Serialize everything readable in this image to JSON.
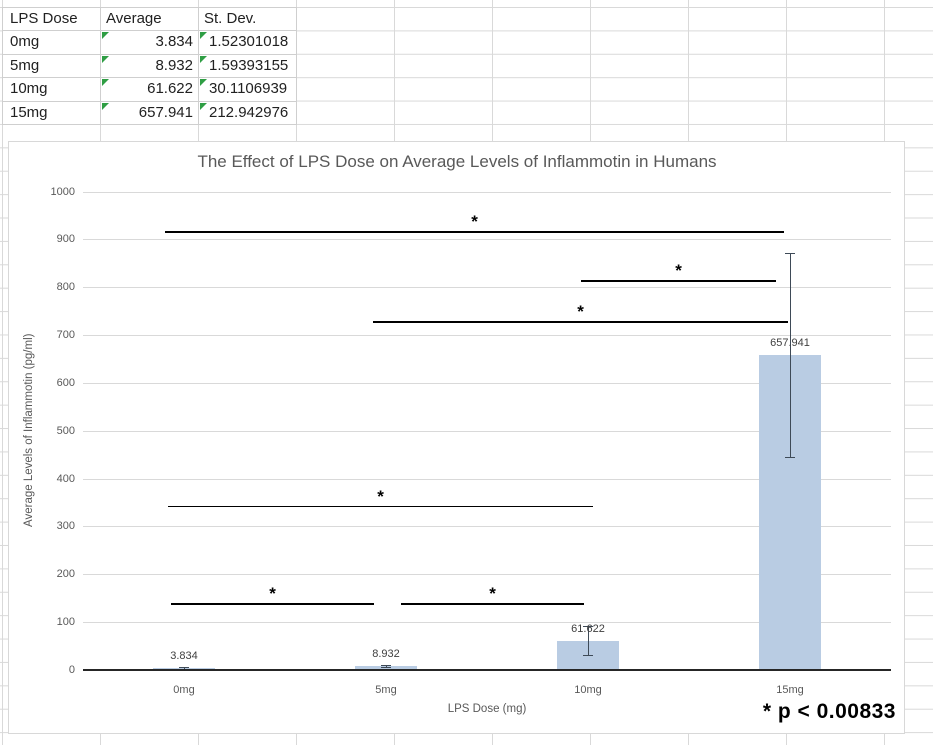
{
  "sheet": {
    "table": {
      "header": [
        "LPS Dose",
        "Average",
        "St. Dev."
      ],
      "rows": [
        {
          "dose": "0mg",
          "avg": "3.834",
          "stdev": "1.52301018"
        },
        {
          "dose": "5mg",
          "avg": "8.932",
          "stdev": "1.59393155"
        },
        {
          "dose": "10mg",
          "avg": "61.622",
          "stdev": "30.1106939"
        },
        {
          "dose": "15mg",
          "avg": "657.941",
          "stdev": "212.942976"
        }
      ]
    }
  },
  "chart_data": {
    "type": "bar",
    "title": "The Effect of LPS Dose on Average Levels of Inflammotin in Humans",
    "xlabel": "LPS Dose (mg)",
    "ylabel": "Average Levels  of Inflammotin (pg/ml)",
    "categories": [
      "0mg",
      "5mg",
      "10mg",
      "15mg"
    ],
    "values": [
      3.834,
      8.932,
      61.622,
      657.941
    ],
    "error_bars": [
      1.52301018,
      1.59393155,
      30.1106939,
      212.942976
    ],
    "data_labels": [
      "3.834",
      "8.932",
      "61.622",
      "657.941"
    ],
    "ylim": [
      0,
      1000
    ],
    "ytick_step": 100,
    "grid": true,
    "legend": "none",
    "bar_color": "#b9cce3",
    "grid_color": "#d9d9d9",
    "axis_text_color": "#595959",
    "significance_lines": [
      {
        "from": 0,
        "to": 3,
        "y": 917,
        "label": "*"
      },
      {
        "from": 2,
        "to": 3,
        "y": 815,
        "label": "*"
      },
      {
        "from": 1,
        "to": 3,
        "y": 729,
        "label": "*"
      },
      {
        "from": 0,
        "to": 2,
        "y": 343,
        "label": "*"
      },
      {
        "from": 0,
        "to": 1,
        "y": 140,
        "label": "*"
      },
      {
        "from": 1,
        "to": 2,
        "y": 140,
        "label": "*"
      }
    ],
    "p_note": "* p < 0.00833"
  }
}
